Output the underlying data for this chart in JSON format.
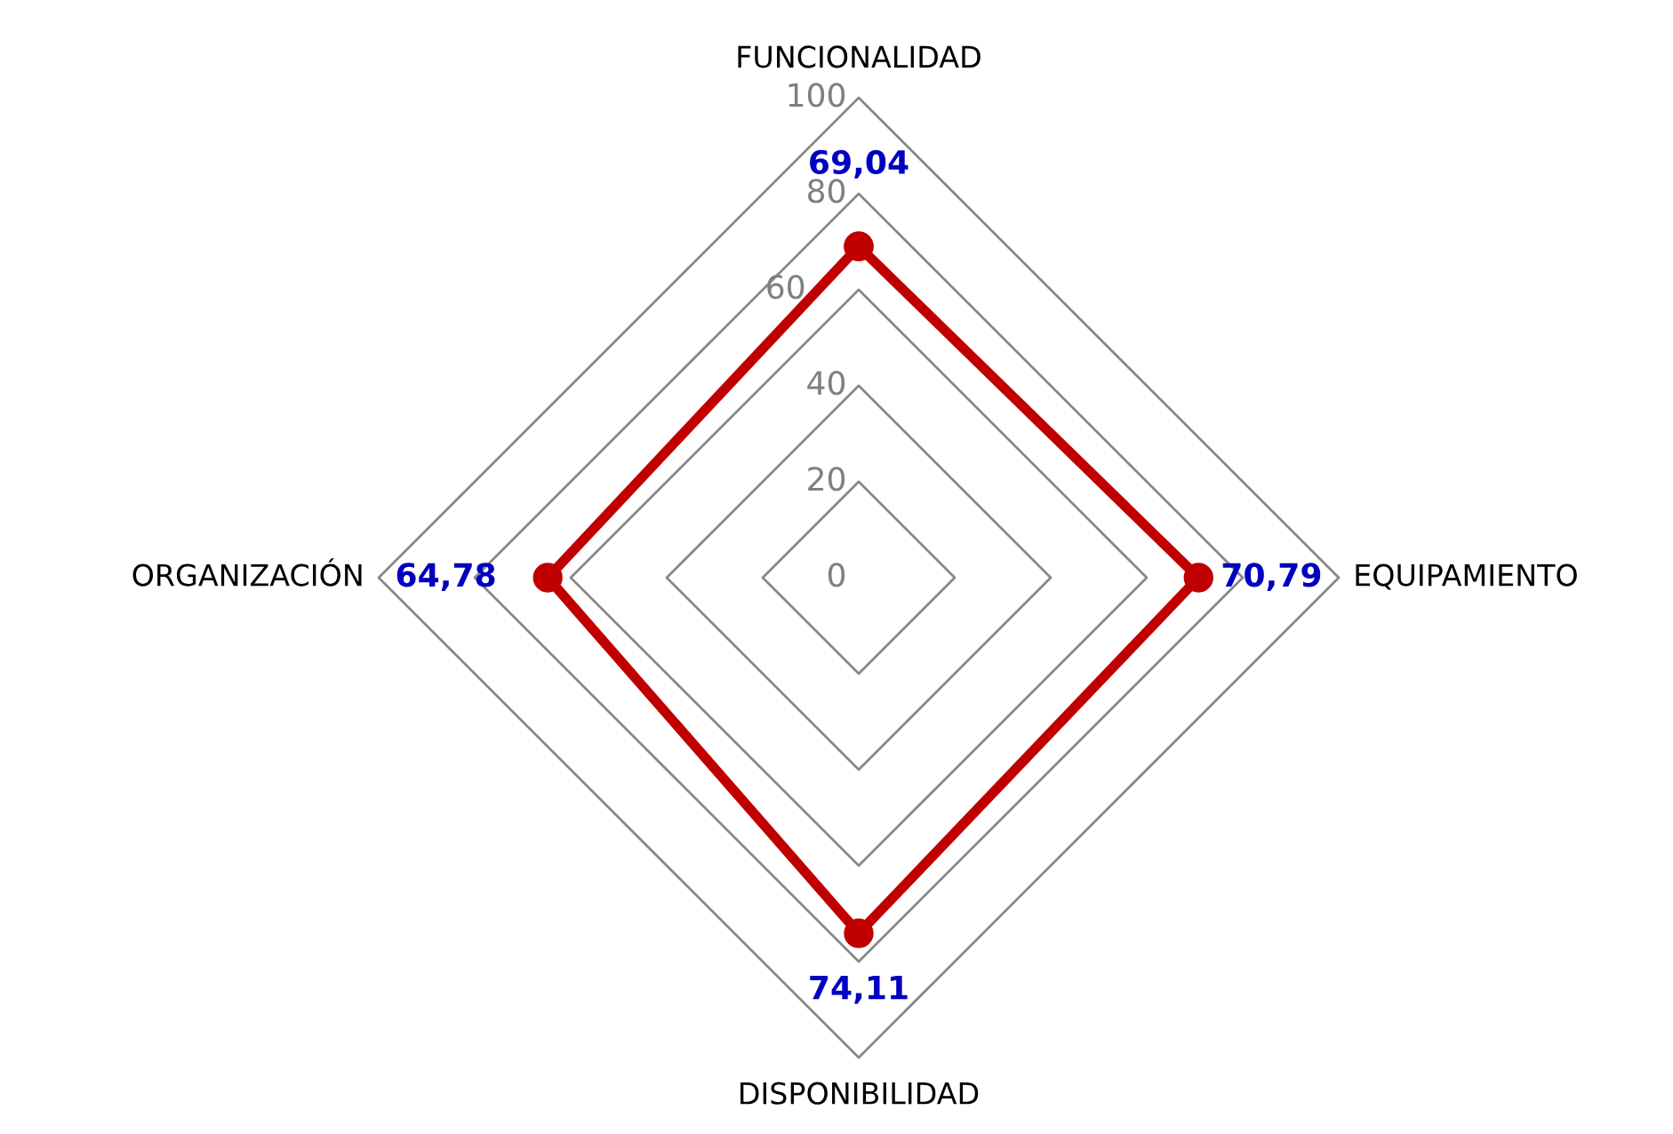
{
  "chart_data": {
    "type": "radar",
    "categories": [
      "FUNCIONALIDAD",
      "EQUIPAMIENTO",
      "DISPONIBILIDAD",
      "ORGANIZACIÓN"
    ],
    "series": [
      {
        "color": "#c00000",
        "values": [
          69.04,
          70.79,
          74.11,
          64.78
        ],
        "value_labels": [
          "69,04",
          "70,79",
          "74,11",
          "64,78"
        ]
      }
    ],
    "ylim": [
      0,
      100
    ],
    "yticks": [
      0,
      20,
      40,
      60,
      80,
      100
    ],
    "marker": "circle",
    "line_style": "solid",
    "grid": true,
    "legend": false
  }
}
